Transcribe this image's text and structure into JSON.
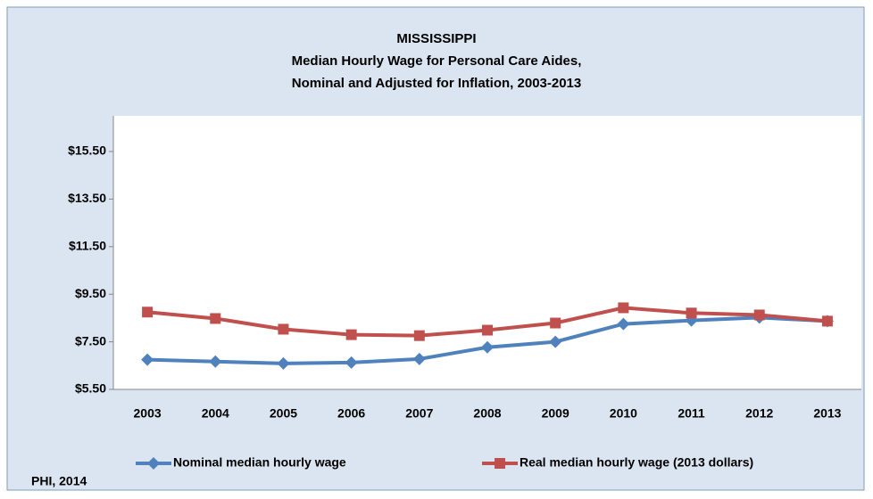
{
  "chart_data": {
    "type": "line",
    "title": [
      "MISSISSIPPI",
      "Median Hourly Wage for Personal Care Aides,",
      "Nominal and Adjusted for Inflation, 2003-2013"
    ],
    "source": "PHI, 2014",
    "categories": [
      "2003",
      "2004",
      "2005",
      "2006",
      "2007",
      "2008",
      "2009",
      "2010",
      "2011",
      "2012",
      "2013"
    ],
    "series": [
      {
        "name": "Nominal median hourly wage",
        "color": "#4f81bd",
        "marker": "diamond",
        "values": [
          6.75,
          6.67,
          6.59,
          6.63,
          6.78,
          7.27,
          7.5,
          8.25,
          8.4,
          8.52,
          8.37
        ]
      },
      {
        "name": "Real median hourly wage (2013 dollars)",
        "color": "#c0504d",
        "marker": "square",
        "values": [
          8.75,
          8.48,
          8.03,
          7.8,
          7.76,
          7.99,
          8.29,
          8.93,
          8.71,
          8.63,
          8.37
        ]
      }
    ],
    "ylim": [
      5.5,
      17
    ],
    "yticks": [
      {
        "value": 5.5,
        "label": "$5.50"
      },
      {
        "value": 7.5,
        "label": "$7.50"
      },
      {
        "value": 9.5,
        "label": "$9.50"
      },
      {
        "value": 11.5,
        "label": "$11.50"
      },
      {
        "value": 13.5,
        "label": "$13.50"
      },
      {
        "value": 15.5,
        "label": "$15.50"
      }
    ],
    "grid": false,
    "legend": "bottom"
  }
}
